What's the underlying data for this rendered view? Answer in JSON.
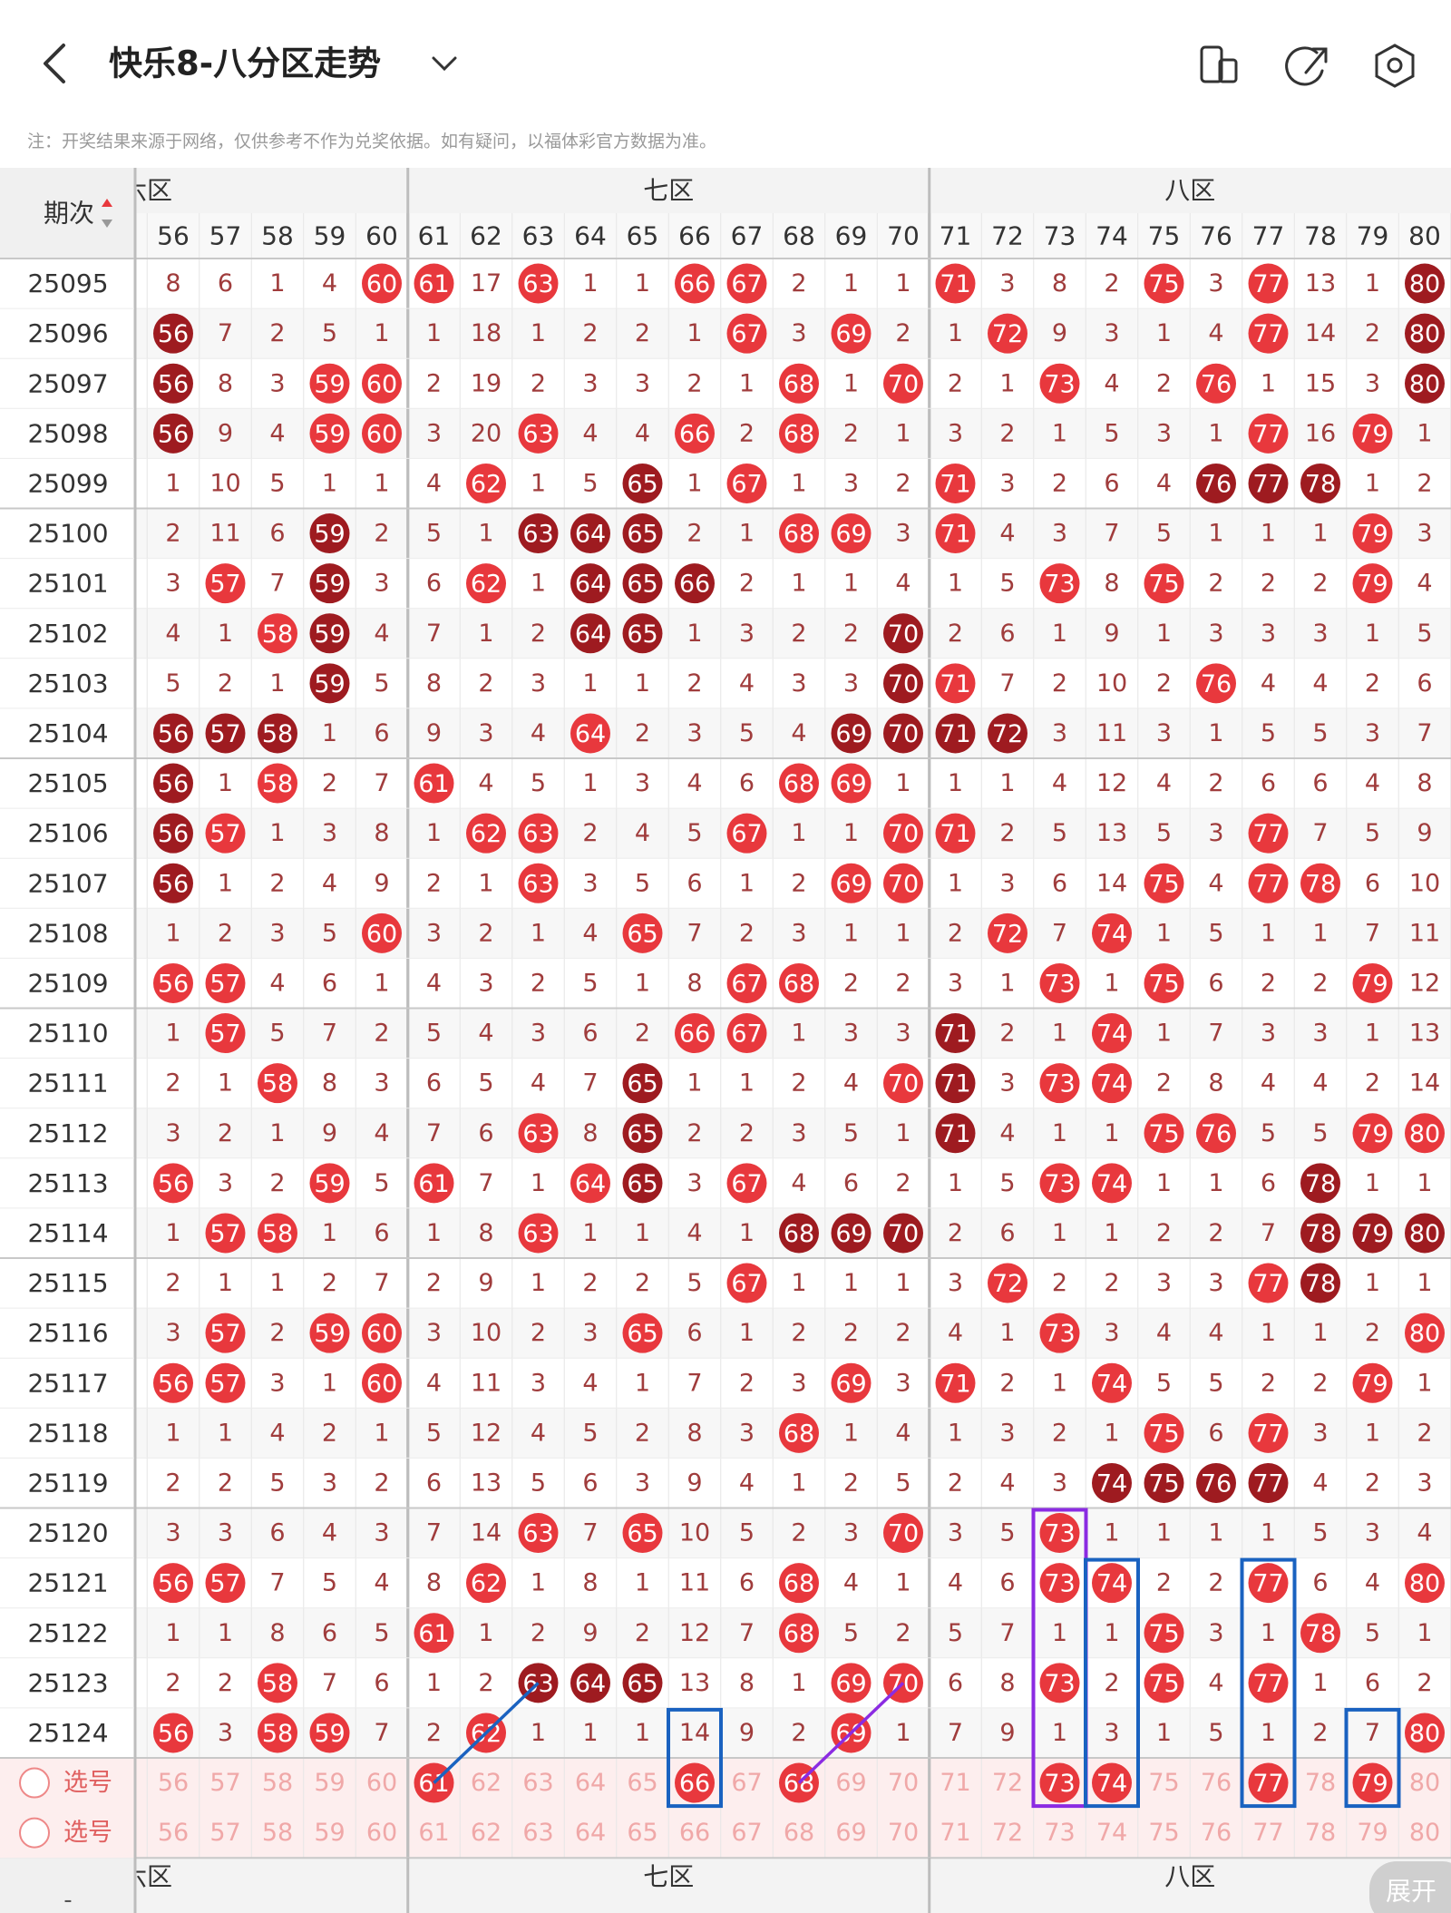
{
  "header": {
    "title": "快乐8-八分区走势",
    "note": "注：开奖结果来源于网络，仅供参考不作为兑奖依据。如有疑问，以福体彩官方数据为准。"
  },
  "table": {
    "period_header": "期次",
    "zones": [
      "六区",
      "七区",
      "八区"
    ],
    "columns": [
      56,
      57,
      58,
      59,
      60,
      61,
      62,
      63,
      64,
      65,
      66,
      67,
      68,
      69,
      70,
      71,
      72,
      73,
      74,
      75,
      76,
      77,
      78,
      79,
      80
    ],
    "rows": [
      {
        "period": "25095",
        "cells": [
          8,
          6,
          1,
          4,
          60,
          61,
          17,
          63,
          1,
          1,
          66,
          67,
          2,
          1,
          1,
          71,
          3,
          8,
          2,
          75,
          3,
          77,
          13,
          1,
          80
        ],
        "dark": [
          80
        ]
      },
      {
        "period": "25096",
        "cells": [
          56,
          7,
          2,
          5,
          1,
          1,
          18,
          1,
          2,
          2,
          1,
          67,
          3,
          69,
          2,
          1,
          72,
          9,
          3,
          1,
          4,
          77,
          14,
          2,
          80
        ],
        "dark": [
          56,
          80
        ]
      },
      {
        "period": "25097",
        "cells": [
          56,
          8,
          3,
          59,
          60,
          2,
          19,
          2,
          3,
          3,
          2,
          1,
          68,
          1,
          70,
          2,
          1,
          73,
          4,
          2,
          76,
          1,
          15,
          3,
          80
        ],
        "dark": [
          56,
          80
        ]
      },
      {
        "period": "25098",
        "cells": [
          56,
          9,
          4,
          59,
          60,
          3,
          20,
          63,
          4,
          4,
          66,
          2,
          68,
          2,
          1,
          3,
          2,
          1,
          5,
          3,
          1,
          77,
          16,
          79,
          1
        ],
        "dark": [
          56
        ]
      },
      {
        "period": "25099",
        "cells": [
          1,
          10,
          5,
          1,
          1,
          4,
          62,
          1,
          5,
          65,
          1,
          67,
          1,
          3,
          2,
          71,
          3,
          2,
          6,
          4,
          76,
          77,
          78,
          1,
          2
        ],
        "dark": [
          65,
          76,
          77,
          78
        ]
      },
      {
        "period": "25100",
        "cells": [
          2,
          11,
          6,
          59,
          2,
          5,
          1,
          63,
          64,
          65,
          2,
          1,
          68,
          69,
          3,
          71,
          4,
          3,
          7,
          5,
          1,
          1,
          1,
          79,
          3
        ],
        "dark": [
          59,
          63,
          64,
          65
        ]
      },
      {
        "period": "25101",
        "cells": [
          3,
          57,
          7,
          59,
          3,
          6,
          62,
          1,
          64,
          65,
          66,
          2,
          1,
          1,
          4,
          1,
          5,
          73,
          8,
          75,
          2,
          2,
          2,
          79,
          4
        ],
        "dark": [
          59,
          64,
          65,
          66
        ]
      },
      {
        "period": "25102",
        "cells": [
          4,
          1,
          58,
          59,
          4,
          7,
          1,
          2,
          64,
          65,
          1,
          3,
          2,
          2,
          70,
          2,
          6,
          1,
          9,
          1,
          3,
          3,
          3,
          1,
          5
        ],
        "dark": [
          59,
          64,
          65,
          70
        ]
      },
      {
        "period": "25103",
        "cells": [
          5,
          2,
          1,
          59,
          5,
          8,
          2,
          3,
          1,
          1,
          2,
          4,
          3,
          3,
          70,
          71,
          7,
          2,
          10,
          2,
          76,
          4,
          4,
          2,
          6
        ],
        "dark": [
          59,
          70
        ]
      },
      {
        "period": "25104",
        "cells": [
          56,
          57,
          58,
          1,
          6,
          9,
          3,
          4,
          64,
          2,
          3,
          5,
          4,
          69,
          70,
          71,
          72,
          3,
          11,
          3,
          1,
          5,
          5,
          3,
          7
        ],
        "dark": [
          56,
          57,
          58,
          69,
          70,
          71,
          72
        ]
      },
      {
        "period": "25105",
        "cells": [
          56,
          1,
          58,
          2,
          7,
          61,
          4,
          5,
          1,
          3,
          4,
          6,
          68,
          69,
          1,
          1,
          1,
          4,
          12,
          4,
          2,
          6,
          6,
          4,
          8
        ],
        "dark": [
          56
        ]
      },
      {
        "period": "25106",
        "cells": [
          56,
          57,
          1,
          3,
          8,
          1,
          62,
          63,
          2,
          4,
          5,
          67,
          1,
          1,
          70,
          71,
          2,
          5,
          13,
          5,
          3,
          77,
          7,
          5,
          9
        ],
        "dark": [
          56
        ]
      },
      {
        "period": "25107",
        "cells": [
          56,
          1,
          2,
          4,
          9,
          2,
          1,
          63,
          3,
          5,
          6,
          1,
          2,
          69,
          70,
          1,
          3,
          6,
          14,
          75,
          4,
          77,
          78,
          6,
          10
        ],
        "dark": [
          56
        ]
      },
      {
        "period": "25108",
        "cells": [
          1,
          2,
          3,
          5,
          60,
          3,
          2,
          1,
          4,
          65,
          7,
          2,
          3,
          1,
          1,
          2,
          72,
          7,
          74,
          1,
          5,
          1,
          1,
          7,
          11
        ]
      },
      {
        "period": "25109",
        "cells": [
          56,
          57,
          4,
          6,
          1,
          4,
          3,
          2,
          5,
          1,
          8,
          67,
          68,
          2,
          2,
          3,
          1,
          73,
          1,
          75,
          6,
          2,
          2,
          79,
          12
        ]
      },
      {
        "period": "25110",
        "cells": [
          1,
          57,
          5,
          7,
          2,
          5,
          4,
          3,
          6,
          2,
          66,
          67,
          1,
          3,
          3,
          71,
          2,
          1,
          74,
          1,
          7,
          3,
          3,
          1,
          13
        ],
        "dark": [
          71
        ]
      },
      {
        "period": "25111",
        "cells": [
          2,
          1,
          58,
          8,
          3,
          6,
          5,
          4,
          7,
          65,
          1,
          1,
          2,
          4,
          70,
          71,
          3,
          73,
          74,
          2,
          8,
          4,
          4,
          2,
          14
        ],
        "dark": [
          65,
          71
        ]
      },
      {
        "period": "25112",
        "cells": [
          3,
          2,
          1,
          9,
          4,
          7,
          6,
          63,
          8,
          65,
          2,
          2,
          3,
          5,
          1,
          71,
          4,
          1,
          1,
          75,
          76,
          5,
          5,
          79,
          80
        ],
        "dark": [
          65,
          71
        ]
      },
      {
        "period": "25113",
        "cells": [
          56,
          3,
          2,
          59,
          5,
          61,
          7,
          1,
          64,
          65,
          3,
          67,
          4,
          6,
          2,
          1,
          5,
          73,
          74,
          1,
          1,
          6,
          78,
          1,
          1
        ],
        "dark": [
          65,
          78
        ]
      },
      {
        "period": "25114",
        "cells": [
          1,
          57,
          58,
          1,
          6,
          1,
          8,
          63,
          1,
          1,
          4,
          1,
          68,
          69,
          70,
          2,
          6,
          1,
          1,
          2,
          2,
          7,
          78,
          79,
          80
        ],
        "dark": [
          68,
          69,
          70,
          78,
          79,
          80
        ]
      },
      {
        "period": "25115",
        "cells": [
          2,
          1,
          1,
          2,
          7,
          2,
          9,
          1,
          2,
          2,
          5,
          67,
          1,
          1,
          1,
          3,
          72,
          2,
          2,
          3,
          3,
          77,
          78,
          1,
          1
        ],
        "dark": [
          78
        ]
      },
      {
        "period": "25116",
        "cells": [
          3,
          57,
          2,
          59,
          60,
          3,
          10,
          2,
          3,
          65,
          6,
          1,
          2,
          2,
          2,
          4,
          1,
          73,
          3,
          4,
          4,
          1,
          1,
          2,
          80
        ]
      },
      {
        "period": "25117",
        "cells": [
          56,
          57,
          3,
          1,
          60,
          4,
          11,
          3,
          4,
          1,
          7,
          2,
          3,
          69,
          3,
          71,
          2,
          1,
          74,
          5,
          5,
          2,
          2,
          79,
          1
        ]
      },
      {
        "period": "25118",
        "cells": [
          1,
          1,
          4,
          2,
          1,
          5,
          12,
          4,
          5,
          2,
          8,
          3,
          68,
          1,
          4,
          1,
          3,
          2,
          1,
          75,
          6,
          77,
          3,
          1,
          2
        ]
      },
      {
        "period": "25119",
        "cells": [
          2,
          2,
          5,
          3,
          2,
          6,
          13,
          5,
          6,
          3,
          9,
          4,
          1,
          2,
          5,
          2,
          4,
          3,
          74,
          75,
          76,
          77,
          4,
          2,
          3
        ],
        "dark": [
          74,
          75,
          76,
          77
        ]
      },
      {
        "period": "25120",
        "cells": [
          3,
          3,
          6,
          4,
          3,
          7,
          14,
          63,
          7,
          65,
          10,
          5,
          2,
          3,
          70,
          3,
          5,
          73,
          1,
          1,
          1,
          1,
          5,
          3,
          4
        ]
      },
      {
        "period": "25121",
        "cells": [
          56,
          57,
          7,
          5,
          4,
          8,
          62,
          1,
          8,
          1,
          11,
          6,
          68,
          4,
          1,
          4,
          6,
          73,
          74,
          2,
          2,
          77,
          6,
          4,
          80
        ]
      },
      {
        "period": "25122",
        "cells": [
          1,
          1,
          8,
          6,
          5,
          61,
          1,
          2,
          9,
          2,
          12,
          7,
          68,
          5,
          2,
          5,
          7,
          1,
          1,
          75,
          3,
          1,
          78,
          5,
          1
        ]
      },
      {
        "period": "25123",
        "cells": [
          2,
          2,
          58,
          7,
          6,
          1,
          2,
          63,
          64,
          65,
          13,
          8,
          1,
          69,
          70,
          6,
          8,
          73,
          2,
          75,
          4,
          77,
          1,
          6,
          2
        ],
        "dark": [
          63,
          64,
          65
        ]
      },
      {
        "period": "25124",
        "cells": [
          56,
          3,
          58,
          59,
          7,
          2,
          62,
          1,
          1,
          1,
          14,
          9,
          2,
          69,
          1,
          7,
          9,
          1,
          3,
          1,
          5,
          1,
          2,
          7,
          80
        ]
      }
    ],
    "select_rows": [
      {
        "label": "选号",
        "cells": [
          56,
          57,
          58,
          59,
          60,
          61,
          62,
          63,
          64,
          65,
          66,
          67,
          68,
          69,
          70,
          71,
          72,
          73,
          74,
          75,
          76,
          77,
          78,
          79,
          80
        ],
        "picked": [
          61,
          66,
          68,
          73,
          74,
          77,
          79
        ]
      },
      {
        "label": "选号",
        "cells": [
          56,
          57,
          58,
          59,
          60,
          61,
          62,
          63,
          64,
          65,
          66,
          67,
          68,
          69,
          70,
          71,
          72,
          73,
          74,
          75,
          76,
          77,
          78,
          79,
          80
        ]
      }
    ],
    "footer_dash": "-",
    "expand": "展开"
  }
}
